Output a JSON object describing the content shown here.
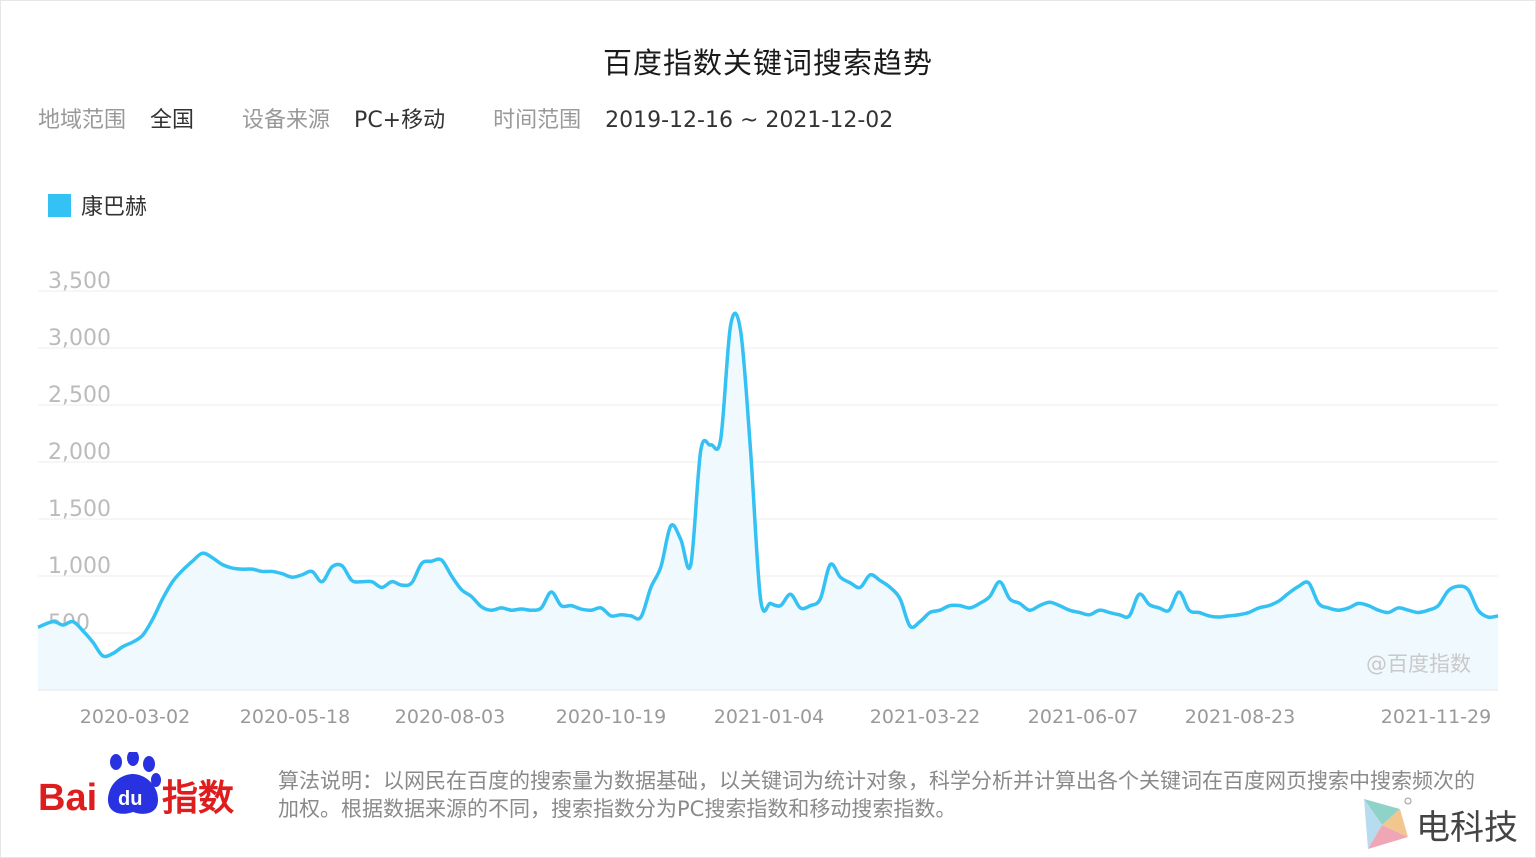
{
  "title": "百度指数关键词搜索趋势",
  "filters": {
    "region_label": "地域范围",
    "region_value": "全国",
    "device_label": "设备来源",
    "device_value": "PC+移动",
    "time_label": "时间范围",
    "time_value": "2019-12-16 ~ 2021-12-02"
  },
  "watermark": "@百度指数",
  "logo": {
    "brand_text": "Bai",
    "brand_du": "du",
    "brand_cn": "指数"
  },
  "description": "算法说明：以网民在百度的搜索量为数据基础，以关键词为统计对象，科学分析并计算出各个关键词在百度网页搜索中搜索频次的加权。根据数据来源的不同，搜索指数分为PC搜索指数和移动搜索指数。",
  "corner_brand": "电科技",
  "colors": {
    "line": "#34c1f3",
    "area": "#f0f9fd",
    "grid": "#eeeeee",
    "tick": "#bbbbbb",
    "logo_red": "#de1e1e",
    "logo_blue": "#2932e1"
  },
  "chart_data": {
    "type": "area",
    "series": [
      {
        "name": "康巴赫",
        "color": "#34c1f3",
        "values": [
          [
            0,
            550
          ],
          [
            3,
            600
          ],
          [
            5,
            570
          ],
          [
            7,
            600
          ],
          [
            9,
            520
          ],
          [
            11,
            420
          ],
          [
            13,
            300
          ],
          [
            15,
            320
          ],
          [
            17,
            380
          ],
          [
            19,
            420
          ],
          [
            21,
            480
          ],
          [
            23,
            620
          ],
          [
            25,
            800
          ],
          [
            27,
            950
          ],
          [
            29,
            1050
          ],
          [
            31,
            1130
          ],
          [
            33,
            1200
          ],
          [
            35,
            1160
          ],
          [
            37,
            1100
          ],
          [
            39,
            1070
          ],
          [
            41,
            1060
          ],
          [
            43,
            1060
          ],
          [
            45,
            1040
          ],
          [
            47,
            1040
          ],
          [
            49,
            1020
          ],
          [
            51,
            990
          ],
          [
            53,
            1010
          ],
          [
            55,
            1040
          ],
          [
            57,
            950
          ],
          [
            59,
            1080
          ],
          [
            61,
            1090
          ],
          [
            63,
            960
          ],
          [
            65,
            950
          ],
          [
            67,
            950
          ],
          [
            69,
            900
          ],
          [
            71,
            950
          ],
          [
            73,
            920
          ],
          [
            75,
            940
          ],
          [
            77,
            1110
          ],
          [
            79,
            1130
          ],
          [
            81,
            1140
          ],
          [
            83,
            1000
          ],
          [
            85,
            880
          ],
          [
            87,
            820
          ],
          [
            89,
            730
          ],
          [
            91,
            700
          ],
          [
            93,
            720
          ],
          [
            95,
            700
          ],
          [
            97,
            710
          ],
          [
            99,
            700
          ],
          [
            101,
            720
          ],
          [
            103,
            860
          ],
          [
            105,
            740
          ],
          [
            107,
            740
          ],
          [
            109,
            710
          ],
          [
            111,
            700
          ],
          [
            113,
            720
          ],
          [
            115,
            650
          ],
          [
            117,
            660
          ],
          [
            119,
            650
          ],
          [
            121,
            640
          ],
          [
            123,
            900
          ],
          [
            125,
            1080
          ],
          [
            127,
            1440
          ],
          [
            129,
            1320
          ],
          [
            131,
            1100
          ],
          [
            133,
            2100
          ],
          [
            135,
            2150
          ],
          [
            137,
            2200
          ],
          [
            139,
            3200
          ],
          [
            141,
            3150
          ],
          [
            143,
            2100
          ],
          [
            145,
            800
          ],
          [
            147,
            760
          ],
          [
            149,
            740
          ],
          [
            151,
            840
          ],
          [
            153,
            720
          ],
          [
            155,
            740
          ],
          [
            157,
            800
          ],
          [
            159,
            1100
          ],
          [
            161,
            990
          ],
          [
            163,
            940
          ],
          [
            165,
            900
          ],
          [
            167,
            1010
          ],
          [
            169,
            960
          ],
          [
            171,
            900
          ],
          [
            173,
            800
          ],
          [
            175,
            560
          ],
          [
            177,
            600
          ],
          [
            179,
            680
          ],
          [
            181,
            700
          ],
          [
            183,
            740
          ],
          [
            185,
            740
          ],
          [
            187,
            720
          ],
          [
            189,
            760
          ],
          [
            191,
            820
          ],
          [
            193,
            950
          ],
          [
            195,
            800
          ],
          [
            197,
            760
          ],
          [
            199,
            700
          ],
          [
            201,
            740
          ],
          [
            203,
            770
          ],
          [
            205,
            740
          ],
          [
            207,
            700
          ],
          [
            209,
            680
          ],
          [
            211,
            660
          ],
          [
            213,
            700
          ],
          [
            215,
            680
          ],
          [
            217,
            660
          ],
          [
            219,
            650
          ],
          [
            221,
            840
          ],
          [
            223,
            750
          ],
          [
            225,
            720
          ],
          [
            227,
            700
          ],
          [
            229,
            860
          ],
          [
            231,
            700
          ],
          [
            233,
            680
          ],
          [
            235,
            650
          ],
          [
            237,
            640
          ],
          [
            239,
            650
          ],
          [
            241,
            660
          ],
          [
            243,
            680
          ],
          [
            245,
            720
          ],
          [
            247,
            740
          ],
          [
            249,
            780
          ],
          [
            251,
            850
          ],
          [
            253,
            910
          ],
          [
            255,
            940
          ],
          [
            257,
            760
          ],
          [
            259,
            720
          ],
          [
            261,
            700
          ],
          [
            263,
            720
          ],
          [
            265,
            760
          ],
          [
            267,
            740
          ],
          [
            269,
            700
          ],
          [
            271,
            680
          ],
          [
            273,
            720
          ],
          [
            275,
            700
          ],
          [
            277,
            680
          ],
          [
            279,
            700
          ],
          [
            281,
            740
          ],
          [
            283,
            870
          ],
          [
            285,
            910
          ],
          [
            287,
            880
          ],
          [
            289,
            700
          ],
          [
            291,
            640
          ],
          [
            293,
            650
          ]
        ]
      }
    ],
    "x_tick_labels": [
      "2020-03-02",
      "2020-05-18",
      "2020-08-03",
      "2020-10-19",
      "2021-01-04",
      "2021-03-22",
      "2021-06-07",
      "2021-08-23",
      "2021-11-29"
    ],
    "y_tick_labels": [
      "500",
      "1,000",
      "1,500",
      "2,000",
      "2,500",
      "3,000",
      "3,500"
    ],
    "yticks": [
      500,
      1000,
      1500,
      2000,
      2500,
      3000,
      3500
    ],
    "ylim": [
      0,
      3500
    ],
    "legend_position": "top-left",
    "grid": true
  }
}
